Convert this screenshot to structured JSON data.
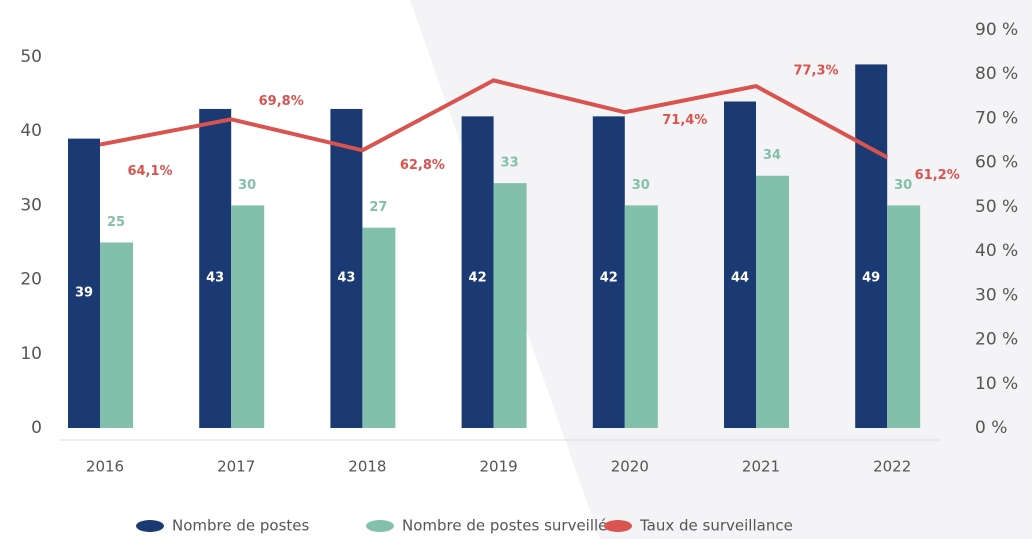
{
  "chart_data": {
    "type": "bar_line",
    "categories": [
      "2016",
      "2017",
      "2018",
      "2019",
      "2020",
      "2021",
      "2022"
    ],
    "series": [
      {
        "name": "Nombre de postes",
        "color": "#1b3a73",
        "values": [
          39,
          43,
          43,
          42,
          42,
          44,
          49
        ]
      },
      {
        "name": "Nombre de postes surveillés",
        "color": "#82c0ab",
        "values": [
          25,
          30,
          27,
          33,
          30,
          34,
          30
        ]
      },
      {
        "name": "Taux de surveillance",
        "color": "#d9534f",
        "axis": "y2",
        "values": [
          64.1,
          69.8,
          62.8,
          78.6,
          71.4,
          77.3,
          61.2
        ],
        "value_labels": [
          "64,1%",
          "69,8%",
          "62,8%",
          null,
          "71,4%",
          "77,3%",
          "61,2%"
        ]
      }
    ],
    "ylim": [
      0,
      50
    ],
    "yticks": [
      0,
      10,
      20,
      30,
      40,
      50
    ],
    "y2lim": [
      0,
      90
    ],
    "y2ticks": [
      {
        "value": 0,
        "label": "0 %"
      },
      {
        "value": 10,
        "label": "10 %"
      },
      {
        "value": 20,
        "label": "20 %"
      },
      {
        "value": 30,
        "label": "30 %"
      },
      {
        "value": 40,
        "label": "40 %"
      },
      {
        "value": 50,
        "label": "50 %"
      },
      {
        "value": 60,
        "label": "60 %"
      },
      {
        "value": 70,
        "label": "70 %"
      },
      {
        "value": 80,
        "label": "80 %"
      },
      {
        "value": 90,
        "label": "90 %"
      }
    ],
    "legend": "bottom"
  }
}
